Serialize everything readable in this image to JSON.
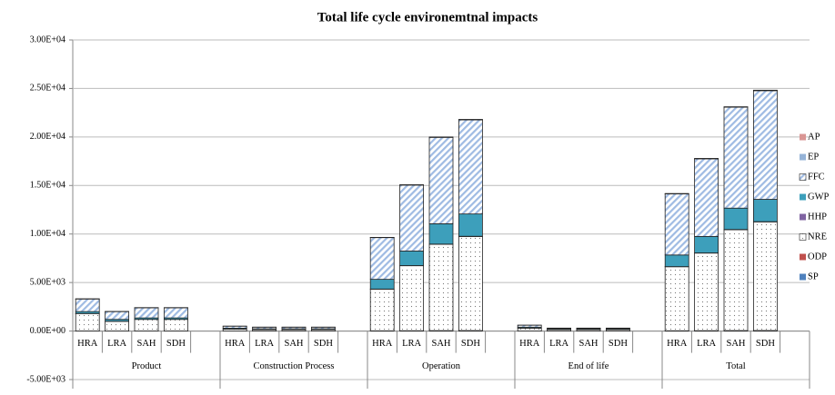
{
  "chart_data": {
    "type": "bar",
    "stacked": true,
    "title": "Total life cycle environemtnal impacts",
    "groups": [
      "Product",
      "Construction Process",
      "Operation",
      "End of life",
      "Total"
    ],
    "categories": [
      "HRA",
      "LRA",
      "SAH",
      "SDH",
      "HRA",
      "LRA",
      "SAH",
      "SDH",
      "HRA",
      "LRA",
      "SAH",
      "SDH",
      "HRA",
      "LRA",
      "SAH",
      "SDH",
      "HRA",
      "LRA",
      "SAH",
      "SDH"
    ],
    "series": [
      {
        "name": "SP",
        "color": "#4f81bd",
        "values": [
          5,
          3,
          4,
          4,
          1,
          1,
          1,
          1,
          20,
          30,
          40,
          45,
          1,
          1,
          1,
          1,
          27,
          35,
          46,
          51
        ]
      },
      {
        "name": "ODP",
        "color": "#c0504d",
        "values": [
          0,
          0,
          0,
          0,
          0,
          0,
          0,
          0,
          0,
          0,
          0,
          0,
          0,
          0,
          0,
          0,
          0,
          0,
          0,
          0
        ]
      },
      {
        "name": "NRE",
        "color": "#ffffff",
        "pattern": "dots",
        "values": [
          1800,
          1000,
          1200,
          1200,
          200,
          150,
          150,
          150,
          4300,
          6700,
          8900,
          9700,
          300,
          150,
          150,
          150,
          6600,
          8000,
          10400,
          11200
        ]
      },
      {
        "name": "HHP",
        "color": "#8064a2",
        "values": [
          2,
          1,
          1,
          1,
          0,
          0,
          0,
          0,
          10,
          15,
          20,
          22,
          0,
          0,
          0,
          0,
          12,
          16,
          21,
          23
        ]
      },
      {
        "name": "GWP",
        "color": "#3d9fbb",
        "values": [
          200,
          200,
          150,
          150,
          100,
          80,
          80,
          80,
          1000,
          1500,
          2100,
          2300,
          100,
          80,
          80,
          80,
          1200,
          1700,
          2200,
          2300
        ]
      },
      {
        "name": "FFC",
        "color": "#9fbbe3",
        "pattern": "hatch",
        "values": [
          1300,
          800,
          1050,
          1050,
          200,
          170,
          170,
          170,
          4300,
          6800,
          8900,
          9700,
          200,
          70,
          70,
          70,
          6300,
          8000,
          10400,
          11200
        ]
      },
      {
        "name": "EP",
        "color": "#95b3d7",
        "values": [
          3,
          2,
          2,
          2,
          0,
          0,
          0,
          0,
          8,
          12,
          15,
          16,
          0,
          0,
          0,
          0,
          11,
          14,
          17,
          18
        ]
      },
      {
        "name": "AP",
        "color": "#d99694",
        "values": [
          5,
          3,
          4,
          4,
          1,
          1,
          1,
          1,
          15,
          20,
          25,
          28,
          1,
          1,
          1,
          1,
          22,
          25,
          30,
          33
        ]
      }
    ],
    "ylim": [
      -5000,
      30000
    ],
    "yticks": [
      {
        "value": -5000,
        "label": "-5.00E+03"
      },
      {
        "value": 0,
        "label": "0.00E+00"
      },
      {
        "value": 5000,
        "label": "5.00E+03"
      },
      {
        "value": 10000,
        "label": "1.00E+04"
      },
      {
        "value": 15000,
        "label": "1.50E+04"
      },
      {
        "value": 20000,
        "label": "2.00E+04"
      },
      {
        "value": 25000,
        "label": "2.50E+04"
      },
      {
        "value": 30000,
        "label": "3.00E+04"
      }
    ],
    "grid": true,
    "legend": "right"
  }
}
